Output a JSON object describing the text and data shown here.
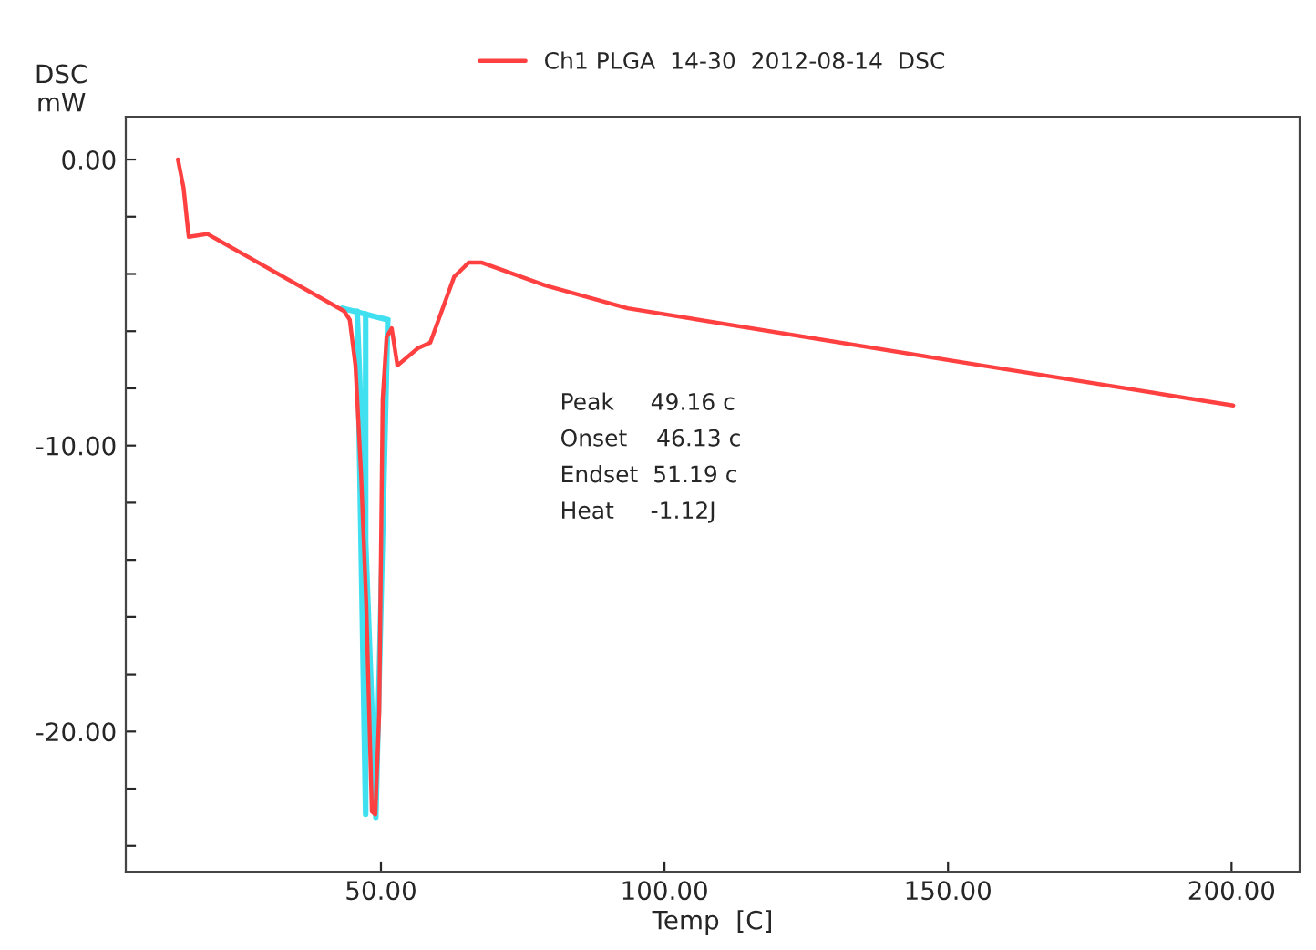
{
  "chart_data": {
    "type": "line",
    "xlabel": "Temp  [C]",
    "ylabel": "DSC\nmW",
    "xlim": [
      5,
      212
    ],
    "ylim": [
      -24.9,
      1.5
    ],
    "xticks": [
      {
        "value": 50,
        "label": "50.00"
      },
      {
        "value": 100,
        "label": "100.00"
      },
      {
        "value": 150,
        "label": "150.00"
      },
      {
        "value": 200,
        "label": "200.00"
      }
    ],
    "yticks": [
      {
        "value": 0,
        "label": "0.00"
      },
      {
        "value": -2,
        "label": null
      },
      {
        "value": -4,
        "label": null
      },
      {
        "value": -6,
        "label": null
      },
      {
        "value": -8,
        "label": null
      },
      {
        "value": -10,
        "label": "-10.00"
      },
      {
        "value": -12,
        "label": null
      },
      {
        "value": -14,
        "label": null
      },
      {
        "value": -16,
        "label": null
      },
      {
        "value": -18,
        "label": null
      },
      {
        "value": -20,
        "label": "-20.00"
      },
      {
        "value": -22,
        "label": null
      },
      {
        "value": -24,
        "label": null
      }
    ],
    "grid": false,
    "legend": "top",
    "marker": "none",
    "line_style": "solid",
    "series": [
      {
        "name": "Ch1 PLGA  14-30  2012-08-14  DSC",
        "color": "#ff4040",
        "x": [
          14.2,
          15.2,
          16.1,
          19.4,
          43.5,
          44.5,
          45.5,
          46.5,
          47.4,
          48.4,
          49.0,
          49.7,
          50.3,
          51.0,
          51.9,
          52.9,
          56.5,
          58.7,
          62.9,
          65.5,
          67.7,
          79,
          93.5,
          156,
          200.3
        ],
        "values": [
          0,
          -1.0,
          -2.7,
          -2.6,
          -5.3,
          -5.6,
          -7.2,
          -11.0,
          -15.5,
          -22.8,
          -22.9,
          -19.3,
          -8.4,
          -6.2,
          -5.9,
          -7.2,
          -6.6,
          -6.4,
          -4.1,
          -3.6,
          -3.6,
          -4.4,
          -5.2,
          -7.2,
          -8.6
        ]
      },
      {
        "color": "#40e0f0",
        "x": [
          43.2,
          51.2
        ],
        "values": [
          -5.2,
          -5.6
        ]
      },
      {
        "color": "#40e0f0",
        "x": [
          47.3,
          47.3,
          45.8,
          49.1,
          51.2
        ],
        "values": [
          -5.4,
          -22.9,
          -5.3,
          -23.0,
          -5.6
        ]
      }
    ],
    "annotations": [
      "Peak     49.16 c",
      "Onset    46.13 c",
      "Endset  51.19 c",
      "Heat     -1.12J"
    ]
  }
}
